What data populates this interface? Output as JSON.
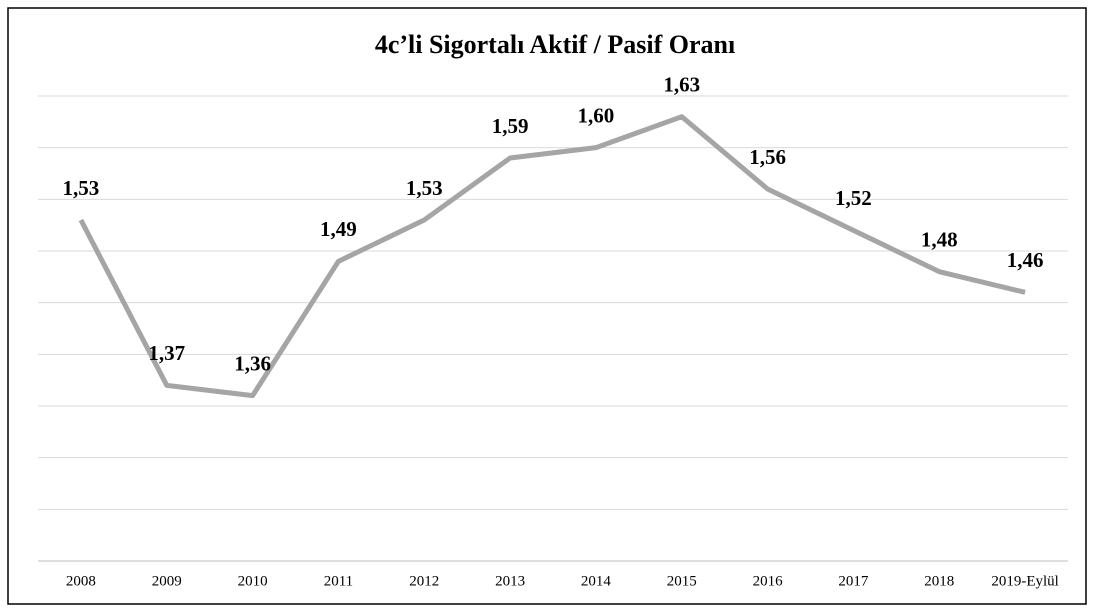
{
  "chart_data": {
    "type": "line",
    "title": "4c’li Sigortalı Aktif / Pasif Oranı",
    "categories": [
      "2008",
      "2009",
      "2010",
      "2011",
      "2012",
      "2013",
      "2014",
      "2015",
      "2016",
      "2017",
      "2018",
      "2019-Eylül"
    ],
    "series": [
      {
        "name": "Aktif / Pasif Oranı",
        "color": "#a5a5a5",
        "values": [
          1.53,
          1.37,
          1.36,
          1.49,
          1.53,
          1.59,
          1.6,
          1.63,
          1.56,
          1.52,
          1.48,
          1.46
        ],
        "value_labels": [
          "1,53",
          "1,37",
          "1,36",
          "1,49",
          "1,53",
          "1,59",
          "1,60",
          "1,63",
          "1,56",
          "1,52",
          "1,48",
          "1,46"
        ]
      }
    ],
    "ylim": [
      1.2,
      1.65
    ],
    "yticks": [
      1.2,
      1.25,
      1.3,
      1.35,
      1.4,
      1.45,
      1.5,
      1.55,
      1.6,
      1.65
    ],
    "grid": true
  }
}
